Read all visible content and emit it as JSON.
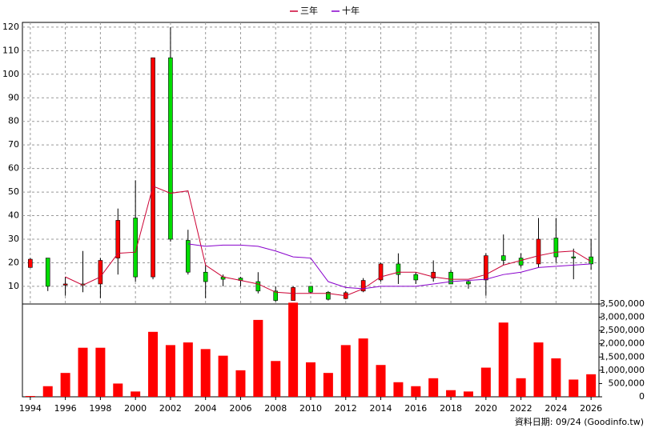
{
  "chart_data": [
    {
      "type": "candlestick",
      "x": [
        1994,
        1995,
        1996,
        1997,
        1998,
        1999,
        2000,
        2001,
        2002,
        2003,
        2004,
        2005,
        2006,
        2007,
        2008,
        2009,
        2010,
        2011,
        2012,
        2013,
        2014,
        2015,
        2016,
        2017,
        2018,
        2019,
        2020,
        2021,
        2022,
        2023,
        2024,
        2025,
        2026
      ],
      "open": [
        18,
        22,
        10.5,
        11,
        11,
        22,
        39,
        14,
        107,
        29.5,
        16,
        14,
        13.5,
        12,
        8,
        4,
        10,
        7.5,
        4.8,
        8,
        12.7,
        19.5,
        15,
        13.5,
        16,
        12,
        12.7,
        23,
        22,
        19.5,
        30.5,
        22.5,
        22.5
      ],
      "close": [
        21.5,
        10,
        11,
        10.5,
        21,
        38,
        14,
        107,
        30,
        16,
        12,
        13,
        12.5,
        8,
        4,
        9.5,
        7.5,
        4.5,
        7.3,
        12.5,
        19.5,
        15,
        12.7,
        16,
        11,
        11,
        23,
        21,
        19,
        30,
        22.5,
        22,
        19.5
      ],
      "high": [
        22,
        22,
        14,
        25,
        22,
        43,
        55,
        107,
        120,
        34,
        19,
        15,
        14,
        16,
        10,
        10,
        10,
        8,
        8,
        13.5,
        20,
        24,
        16,
        21,
        17,
        12.5,
        24,
        32,
        24,
        39,
        39,
        26,
        30
      ],
      "low": [
        18,
        8,
        6,
        7.5,
        5,
        15,
        12,
        13,
        29,
        15,
        5,
        10,
        10,
        7,
        3.5,
        4,
        7,
        4,
        4.5,
        7.5,
        12,
        11,
        11,
        12,
        11,
        9,
        6,
        19,
        18,
        18,
        20,
        13,
        17
      ],
      "up_color": "#ff0000",
      "down_color": "#00dd00",
      "series": [
        {
          "name": "三年",
          "color": "#cc0033",
          "values": [
            null,
            null,
            14,
            10.5,
            14,
            24,
            24.5,
            52.5,
            49.5,
            50.5,
            19,
            14,
            12.5,
            11,
            7.5,
            7,
            7,
            7,
            6,
            9,
            14,
            16,
            16,
            14,
            13,
            13,
            15,
            19,
            21,
            23,
            24.5,
            25,
            20.5
          ]
        },
        {
          "name": "十年",
          "color": "#8800cc",
          "values": [
            null,
            null,
            null,
            null,
            null,
            null,
            null,
            null,
            null,
            28,
            27,
            27.5,
            27.5,
            27,
            25,
            22.5,
            22,
            12,
            9.5,
            9,
            10,
            10,
            10,
            11,
            12,
            12.5,
            13,
            15,
            16,
            18,
            18.5,
            19,
            19.5
          ]
        }
      ],
      "xlim": [
        1993.55,
        2026.45
      ],
      "ylim": [
        2.5,
        122
      ],
      "yticks": [
        10,
        20,
        30,
        40,
        50,
        60,
        70,
        80,
        90,
        100,
        110,
        120
      ],
      "grid": true,
      "legend": "top"
    },
    {
      "type": "bar",
      "x": [
        1994,
        1995,
        1996,
        1997,
        1998,
        1999,
        2000,
        2001,
        2002,
        2003,
        2004,
        2005,
        2006,
        2007,
        2008,
        2009,
        2010,
        2011,
        2012,
        2013,
        2014,
        2015,
        2016,
        2017,
        2018,
        2019,
        2020,
        2021,
        2022,
        2023,
        2024,
        2025,
        2026
      ],
      "values": [
        30000,
        400000,
        900000,
        1850000,
        1850000,
        500000,
        200000,
        2450000,
        1950000,
        2050000,
        1800000,
        1550000,
        1000000,
        2900000,
        1350000,
        3550000,
        1300000,
        900000,
        1950000,
        2200000,
        1200000,
        550000,
        400000,
        700000,
        250000,
        200000,
        1100000,
        2800000,
        700000,
        2050000,
        1450000,
        650000,
        850000
      ],
      "color": "#ff0000",
      "xlim": [
        1993.55,
        2026.45
      ],
      "xticks": [
        1994,
        1996,
        1998,
        2000,
        2002,
        2004,
        2006,
        2008,
        2010,
        2012,
        2014,
        2016,
        2018,
        2020,
        2022,
        2024,
        2026
      ],
      "ylim": [
        0,
        3500000
      ],
      "yticks": [
        {
          "value": 0,
          "label": "0"
        },
        {
          "value": 500000,
          "label": "500,000"
        },
        {
          "value": 1000000,
          "label": "1,000,000"
        },
        {
          "value": 1500000,
          "label": "1,500,000"
        },
        {
          "value": 2000000,
          "label": "2,000,000"
        },
        {
          "value": 2500000,
          "label": "2,500,000"
        },
        {
          "value": 3000000,
          "label": "3,000,000"
        },
        {
          "value": 3500000,
          "label": "3,500,000"
        }
      ]
    }
  ],
  "source": "資料日期: 09/24  (Goodinfo.tw)"
}
